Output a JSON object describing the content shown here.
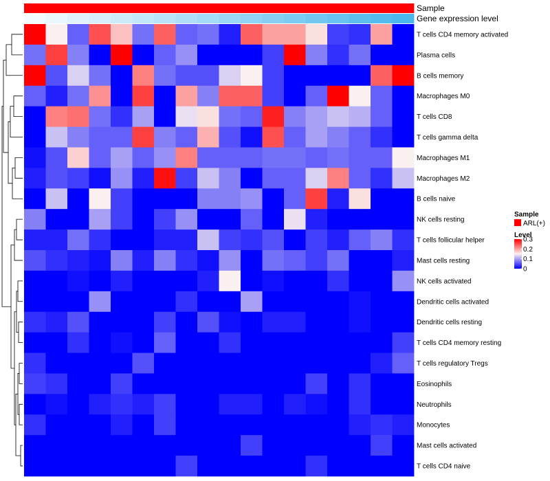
{
  "chart_data": {
    "type": "heatmap",
    "annotation_tracks": [
      {
        "name": "Sample",
        "colors": [
          "#ff0000",
          "#ff0000",
          "#ff0000",
          "#ff0000",
          "#ff0000",
          "#ff0000",
          "#ff0000",
          "#ff0000",
          "#ff0000",
          "#ff0000",
          "#ff0000",
          "#ff0000",
          "#ff0000",
          "#ff0000",
          "#ff0000",
          "#ff0000",
          "#ff0000",
          "#ff0000"
        ]
      },
      {
        "name": "Gene expression level",
        "colors": [
          "#f4fbfe",
          "#eaf7fd",
          "#e0f3fc",
          "#d6effb",
          "#ccebfa",
          "#c2e7f9",
          "#b8e3f8",
          "#aedff7",
          "#a4dbf6",
          "#9ad7f5",
          "#90d3f4",
          "#86cff3",
          "#7ccbf2",
          "#72c7f1",
          "#68c3f0",
          "#5ebfef",
          "#54bbee",
          "#4ab7ed"
        ]
      }
    ],
    "rows": [
      "T cells CD4 memory activated",
      "Plasma cells",
      "B cells memory",
      "Macrophages M0",
      "T cells CD8",
      "T cells gamma delta",
      "Macrophages M1",
      "Macrophages M2",
      "B cells naive",
      "NK cells resting",
      "T cells follicular helper",
      "Mast cells resting",
      "NK cells activated",
      "Dendritic cells activated",
      "Dendritic cells resting",
      "T cells CD4 memory resting",
      "T cells regulatory  Tregs",
      "Eosinophils",
      "Neutrophils",
      "Monocytes",
      "Mast cells activated",
      "T cells CD4 naive"
    ],
    "values": [
      [
        0.3,
        0.15,
        0.06,
        0.25,
        0.18,
        0.07,
        0.24,
        0.06,
        0.07,
        0.02,
        0.24,
        0.2,
        0.2,
        0.16,
        0.04,
        0.03,
        0.2,
        0.0
      ],
      [
        0.07,
        0.26,
        0.08,
        0.0,
        0.3,
        0.0,
        0.06,
        0.09,
        0.0,
        0.0,
        0.0,
        0.04,
        0.3,
        0.08,
        0.03,
        0.07,
        0.0,
        0.0
      ],
      [
        0.3,
        0.05,
        0.13,
        0.07,
        0.0,
        0.22,
        0.07,
        0.05,
        0.05,
        0.13,
        0.15,
        0.04,
        0.0,
        0.0,
        0.0,
        0.0,
        0.24,
        0.3
      ],
      [
        0.06,
        0.02,
        0.07,
        0.21,
        0.0,
        0.26,
        0.0,
        0.2,
        0.08,
        0.24,
        0.24,
        0.04,
        0.0,
        0.06,
        0.3,
        0.15,
        0.06,
        0.0
      ],
      [
        0.0,
        0.22,
        0.23,
        0.07,
        0.03,
        0.1,
        0.0,
        0.14,
        0.16,
        0.07,
        0.06,
        0.28,
        0.08,
        0.1,
        0.12,
        0.11,
        0.06,
        0.0
      ],
      [
        0.0,
        0.12,
        0.08,
        0.06,
        0.06,
        0.26,
        0.08,
        0.06,
        0.19,
        0.05,
        0.01,
        0.25,
        0.06,
        0.1,
        0.08,
        0.06,
        0.03,
        0.0
      ],
      [
        0.01,
        0.05,
        0.17,
        0.06,
        0.1,
        0.06,
        0.09,
        0.22,
        0.06,
        0.06,
        0.06,
        0.07,
        0.07,
        0.06,
        0.07,
        0.06,
        0.06,
        0.15
      ],
      [
        0.02,
        0.05,
        0.04,
        0.01,
        0.09,
        0.02,
        0.29,
        0.04,
        0.12,
        0.08,
        0.0,
        0.06,
        0.06,
        0.13,
        0.22,
        0.06,
        0.03,
        0.12
      ],
      [
        0.0,
        0.12,
        0.0,
        0.15,
        0.04,
        0.0,
        0.0,
        0.0,
        0.08,
        0.08,
        0.09,
        0.0,
        0.06,
        0.26,
        0.02,
        0.16,
        0.0,
        0.0
      ],
      [
        0.08,
        0.0,
        0.0,
        0.1,
        0.04,
        0.0,
        0.04,
        0.09,
        0.0,
        0.0,
        0.06,
        0.0,
        0.14,
        0.02,
        0.0,
        0.0,
        0.0,
        0.0
      ],
      [
        0.02,
        0.02,
        0.07,
        0.03,
        0.0,
        0.0,
        0.02,
        0.02,
        0.12,
        0.04,
        0.03,
        0.05,
        0.0,
        0.04,
        0.02,
        0.06,
        0.08,
        0.03
      ],
      [
        0.05,
        0.03,
        0.02,
        0.01,
        0.08,
        0.02,
        0.08,
        0.03,
        0.01,
        0.09,
        0.0,
        0.07,
        0.06,
        0.04,
        0.07,
        0.0,
        0.0,
        0.02
      ],
      [
        0.0,
        0.0,
        0.01,
        0.0,
        0.02,
        0.0,
        0.0,
        0.0,
        0.02,
        0.15,
        0.0,
        0.01,
        0.0,
        0.0,
        0.03,
        0.0,
        0.0,
        0.09
      ],
      [
        0.0,
        0.0,
        0.0,
        0.09,
        0.0,
        0.0,
        0.0,
        0.03,
        0.0,
        0.0,
        0.1,
        0.0,
        0.0,
        0.0,
        0.0,
        0.01,
        0.0,
        0.0
      ],
      [
        0.03,
        0.02,
        0.05,
        0.0,
        0.0,
        0.0,
        0.04,
        0.0,
        0.05,
        0.01,
        0.0,
        0.02,
        0.02,
        0.0,
        0.0,
        0.01,
        0.0,
        0.0
      ],
      [
        0.0,
        0.0,
        0.03,
        0.0,
        0.01,
        0.0,
        0.06,
        0.0,
        0.0,
        0.03,
        0.0,
        0.0,
        0.0,
        0.0,
        0.0,
        0.0,
        0.0,
        0.04
      ],
      [
        0.03,
        0.0,
        0.0,
        0.0,
        0.0,
        0.05,
        0.0,
        0.0,
        0.0,
        0.0,
        0.0,
        0.0,
        0.0,
        0.0,
        0.0,
        0.0,
        0.02,
        0.06
      ],
      [
        0.04,
        0.03,
        0.0,
        0.0,
        0.04,
        0.0,
        0.0,
        0.0,
        0.0,
        0.0,
        0.0,
        0.0,
        0.0,
        0.04,
        0.0,
        0.03,
        0.0,
        0.0
      ],
      [
        0.0,
        0.01,
        0.0,
        0.02,
        0.03,
        0.02,
        0.04,
        0.0,
        0.0,
        0.02,
        0.02,
        0.0,
        0.02,
        0.01,
        0.0,
        0.03,
        0.0,
        0.0
      ],
      [
        0.03,
        0.0,
        0.0,
        0.0,
        0.02,
        0.0,
        0.04,
        0.0,
        0.0,
        0.0,
        0.0,
        0.0,
        0.0,
        0.0,
        0.0,
        0.02,
        0.03,
        0.02
      ],
      [
        0.0,
        0.0,
        0.0,
        0.0,
        0.0,
        0.0,
        0.0,
        0.0,
        0.0,
        0.0,
        0.04,
        0.0,
        0.0,
        0.0,
        0.0,
        0.0,
        0.04,
        0.0
      ],
      [
        0.0,
        0.0,
        0.0,
        0.0,
        0.0,
        0.0,
        0.0,
        0.04,
        0.0,
        0.0,
        0.0,
        0.0,
        0.0,
        0.03,
        0.0,
        0.0,
        0.0,
        0.0
      ]
    ],
    "color_scale": {
      "min": 0,
      "mid": 0.15,
      "max": 0.3,
      "low": "#0000ff",
      "midColor": "#fbf0f0",
      "high": "#ff0000"
    },
    "row_dendrogram": "left",
    "legend": {
      "position": "right",
      "sample": {
        "title": "Sample",
        "items": [
          {
            "label": "ARL(+)",
            "color": "#ff0000"
          }
        ]
      },
      "level": {
        "title": "Level",
        "ticks": [
          0.3,
          0.2,
          0.1,
          0
        ],
        "tick_labels": [
          "0.3",
          "0.2",
          "0.1",
          "0"
        ]
      }
    }
  }
}
